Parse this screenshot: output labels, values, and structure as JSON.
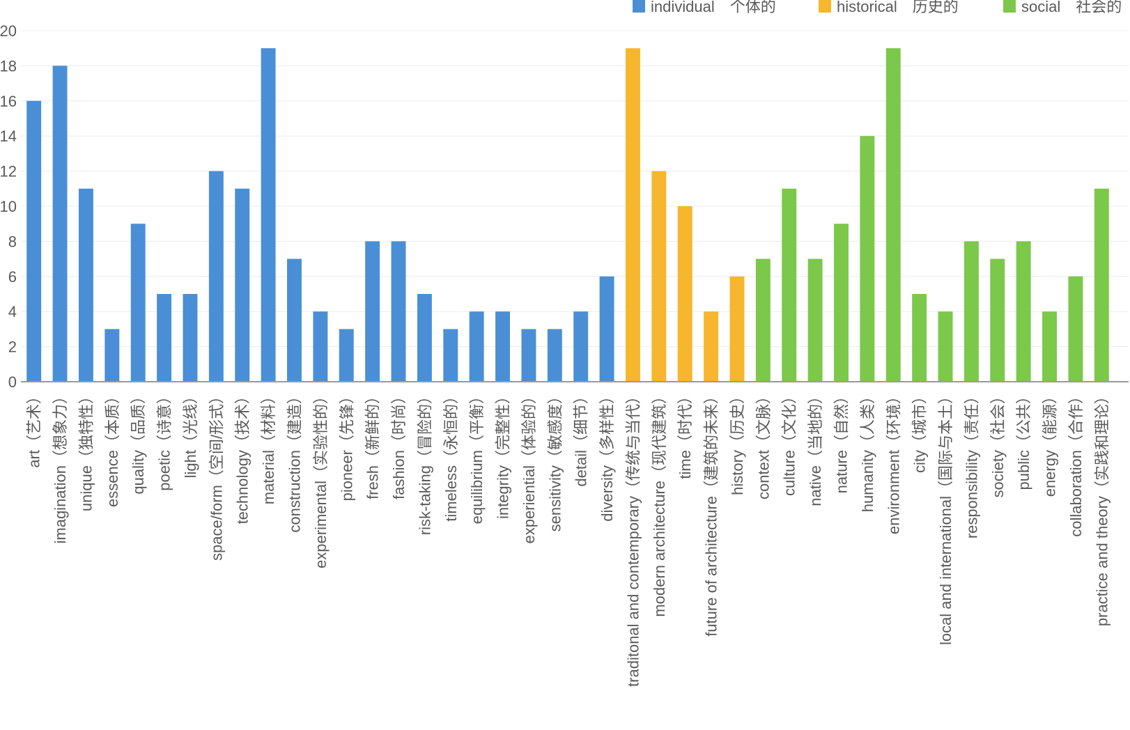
{
  "chart_data": {
    "type": "bar",
    "title": "",
    "xlabel": "",
    "ylabel": "",
    "ylim": [
      0,
      20
    ],
    "yticks": [
      0,
      2,
      4,
      6,
      8,
      10,
      12,
      14,
      16,
      18,
      20
    ],
    "grid": true,
    "legend_position": "top-right",
    "series": [
      {
        "name": "individual　个体的",
        "color": "#4a8fd6"
      },
      {
        "name": "historical　历史的",
        "color": "#f6b62e"
      },
      {
        "name": "social　社会的",
        "color": "#7cc84a"
      }
    ],
    "categories": [
      "art（艺术）",
      "imagination（想象力）",
      "unique（独特性）",
      "essence（本质）",
      "quality（品质）",
      "poetic（诗意）",
      "light（光线）",
      "space/form（空间/形式）",
      "technology（技术）",
      "material（材料）",
      "construction（建造）",
      "experimental（实验性的）",
      "pioneer（先锋）",
      "fresh（新鲜的）",
      "fashion（时尚）",
      "risk-taking（冒险的）",
      "timeless（永恒的）",
      "equilibrium（平衡）",
      "integrity（完整性）",
      "experiential（体验的）",
      "sensitivity（敏感度）",
      "detail（细节）",
      "diversity（多样性）",
      "traditonal and contemporary（传统与当代）",
      "modern architecture（现代建筑）",
      "time（时代）",
      "future of architecture（建筑的未来）",
      "history（历史）",
      "context（文脉）",
      "culture（文化）",
      "native（当地的）",
      "nature（自然）",
      "humanity（人类）",
      "environment（环境）",
      "city（城市）",
      "local and international（国际与本土）",
      "responsibility（责任）",
      "society（社会）",
      "public（公共）",
      "energy（能源）",
      "collaboration（合作）",
      "practice and theory（实践和理论）"
    ],
    "values": [
      16,
      18,
      11,
      3,
      9,
      5,
      5,
      12,
      11,
      19,
      7,
      4,
      3,
      8,
      8,
      5,
      3,
      4,
      4,
      3,
      3,
      4,
      6,
      19,
      12,
      10,
      4,
      6,
      7,
      11,
      7,
      9,
      14,
      19,
      5,
      4,
      8,
      7,
      8,
      4,
      6,
      11
    ],
    "groups": [
      0,
      0,
      0,
      0,
      0,
      0,
      0,
      0,
      0,
      0,
      0,
      0,
      0,
      0,
      0,
      0,
      0,
      0,
      0,
      0,
      0,
      0,
      0,
      1,
      1,
      1,
      1,
      1,
      2,
      2,
      2,
      2,
      2,
      2,
      2,
      2,
      2,
      2,
      2,
      2,
      2,
      2
    ]
  }
}
